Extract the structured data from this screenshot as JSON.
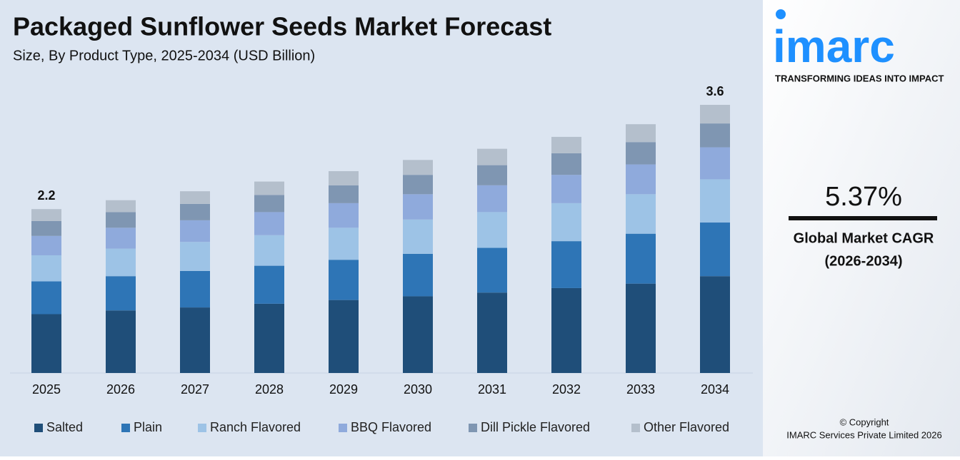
{
  "chart_data": {
    "type": "stacked_bar",
    "title": "Packaged Sunflower Seeds Market Forecast",
    "subtitle": "Size, By Product Type, 2025-2034 (USD Billion)",
    "categories": [
      "2025",
      "2026",
      "2027",
      "2028",
      "2029",
      "2030",
      "2031",
      "2032",
      "2033",
      "2034"
    ],
    "series": [
      {
        "name": "Salted",
        "color": "#1f4e79",
        "values": [
          0.79,
          0.84,
          0.88,
          0.93,
          0.98,
          1.03,
          1.08,
          1.14,
          1.2,
          1.3
        ]
      },
      {
        "name": "Plain",
        "color": "#2e75b6",
        "values": [
          0.44,
          0.46,
          0.49,
          0.51,
          0.54,
          0.57,
          0.6,
          0.63,
          0.67,
          0.72
        ]
      },
      {
        "name": "Ranch Flavored",
        "color": "#9dc3e6",
        "values": [
          0.35,
          0.37,
          0.39,
          0.41,
          0.43,
          0.46,
          0.48,
          0.51,
          0.53,
          0.58
        ]
      },
      {
        "name": "BBQ Flavored",
        "color": "#8faadc",
        "values": [
          0.26,
          0.28,
          0.29,
          0.31,
          0.33,
          0.34,
          0.36,
          0.38,
          0.4,
          0.43
        ]
      },
      {
        "name": "Dill Pickle Flavored",
        "color": "#7f96b2",
        "values": [
          0.2,
          0.21,
          0.22,
          0.23,
          0.24,
          0.26,
          0.27,
          0.29,
          0.3,
          0.32
        ]
      },
      {
        "name": "Other Flavored",
        "color": "#b4bfcc",
        "values": [
          0.16,
          0.16,
          0.17,
          0.18,
          0.19,
          0.2,
          0.22,
          0.22,
          0.24,
          0.25
        ]
      }
    ],
    "total_labels": [
      2.2,
      null,
      null,
      null,
      null,
      null,
      null,
      null,
      null,
      3.6
    ]
  },
  "sidebar": {
    "logo": "imarc",
    "tagline": "TRANSFORMING IDEAS INTO IMPACT",
    "cagr": "5.37%",
    "cagr_label": "Global Market CAGR",
    "cagr_period": "(2026-2034)",
    "copyright": "© Copyright",
    "company": "IMARC Services Private Limited 2026"
  }
}
